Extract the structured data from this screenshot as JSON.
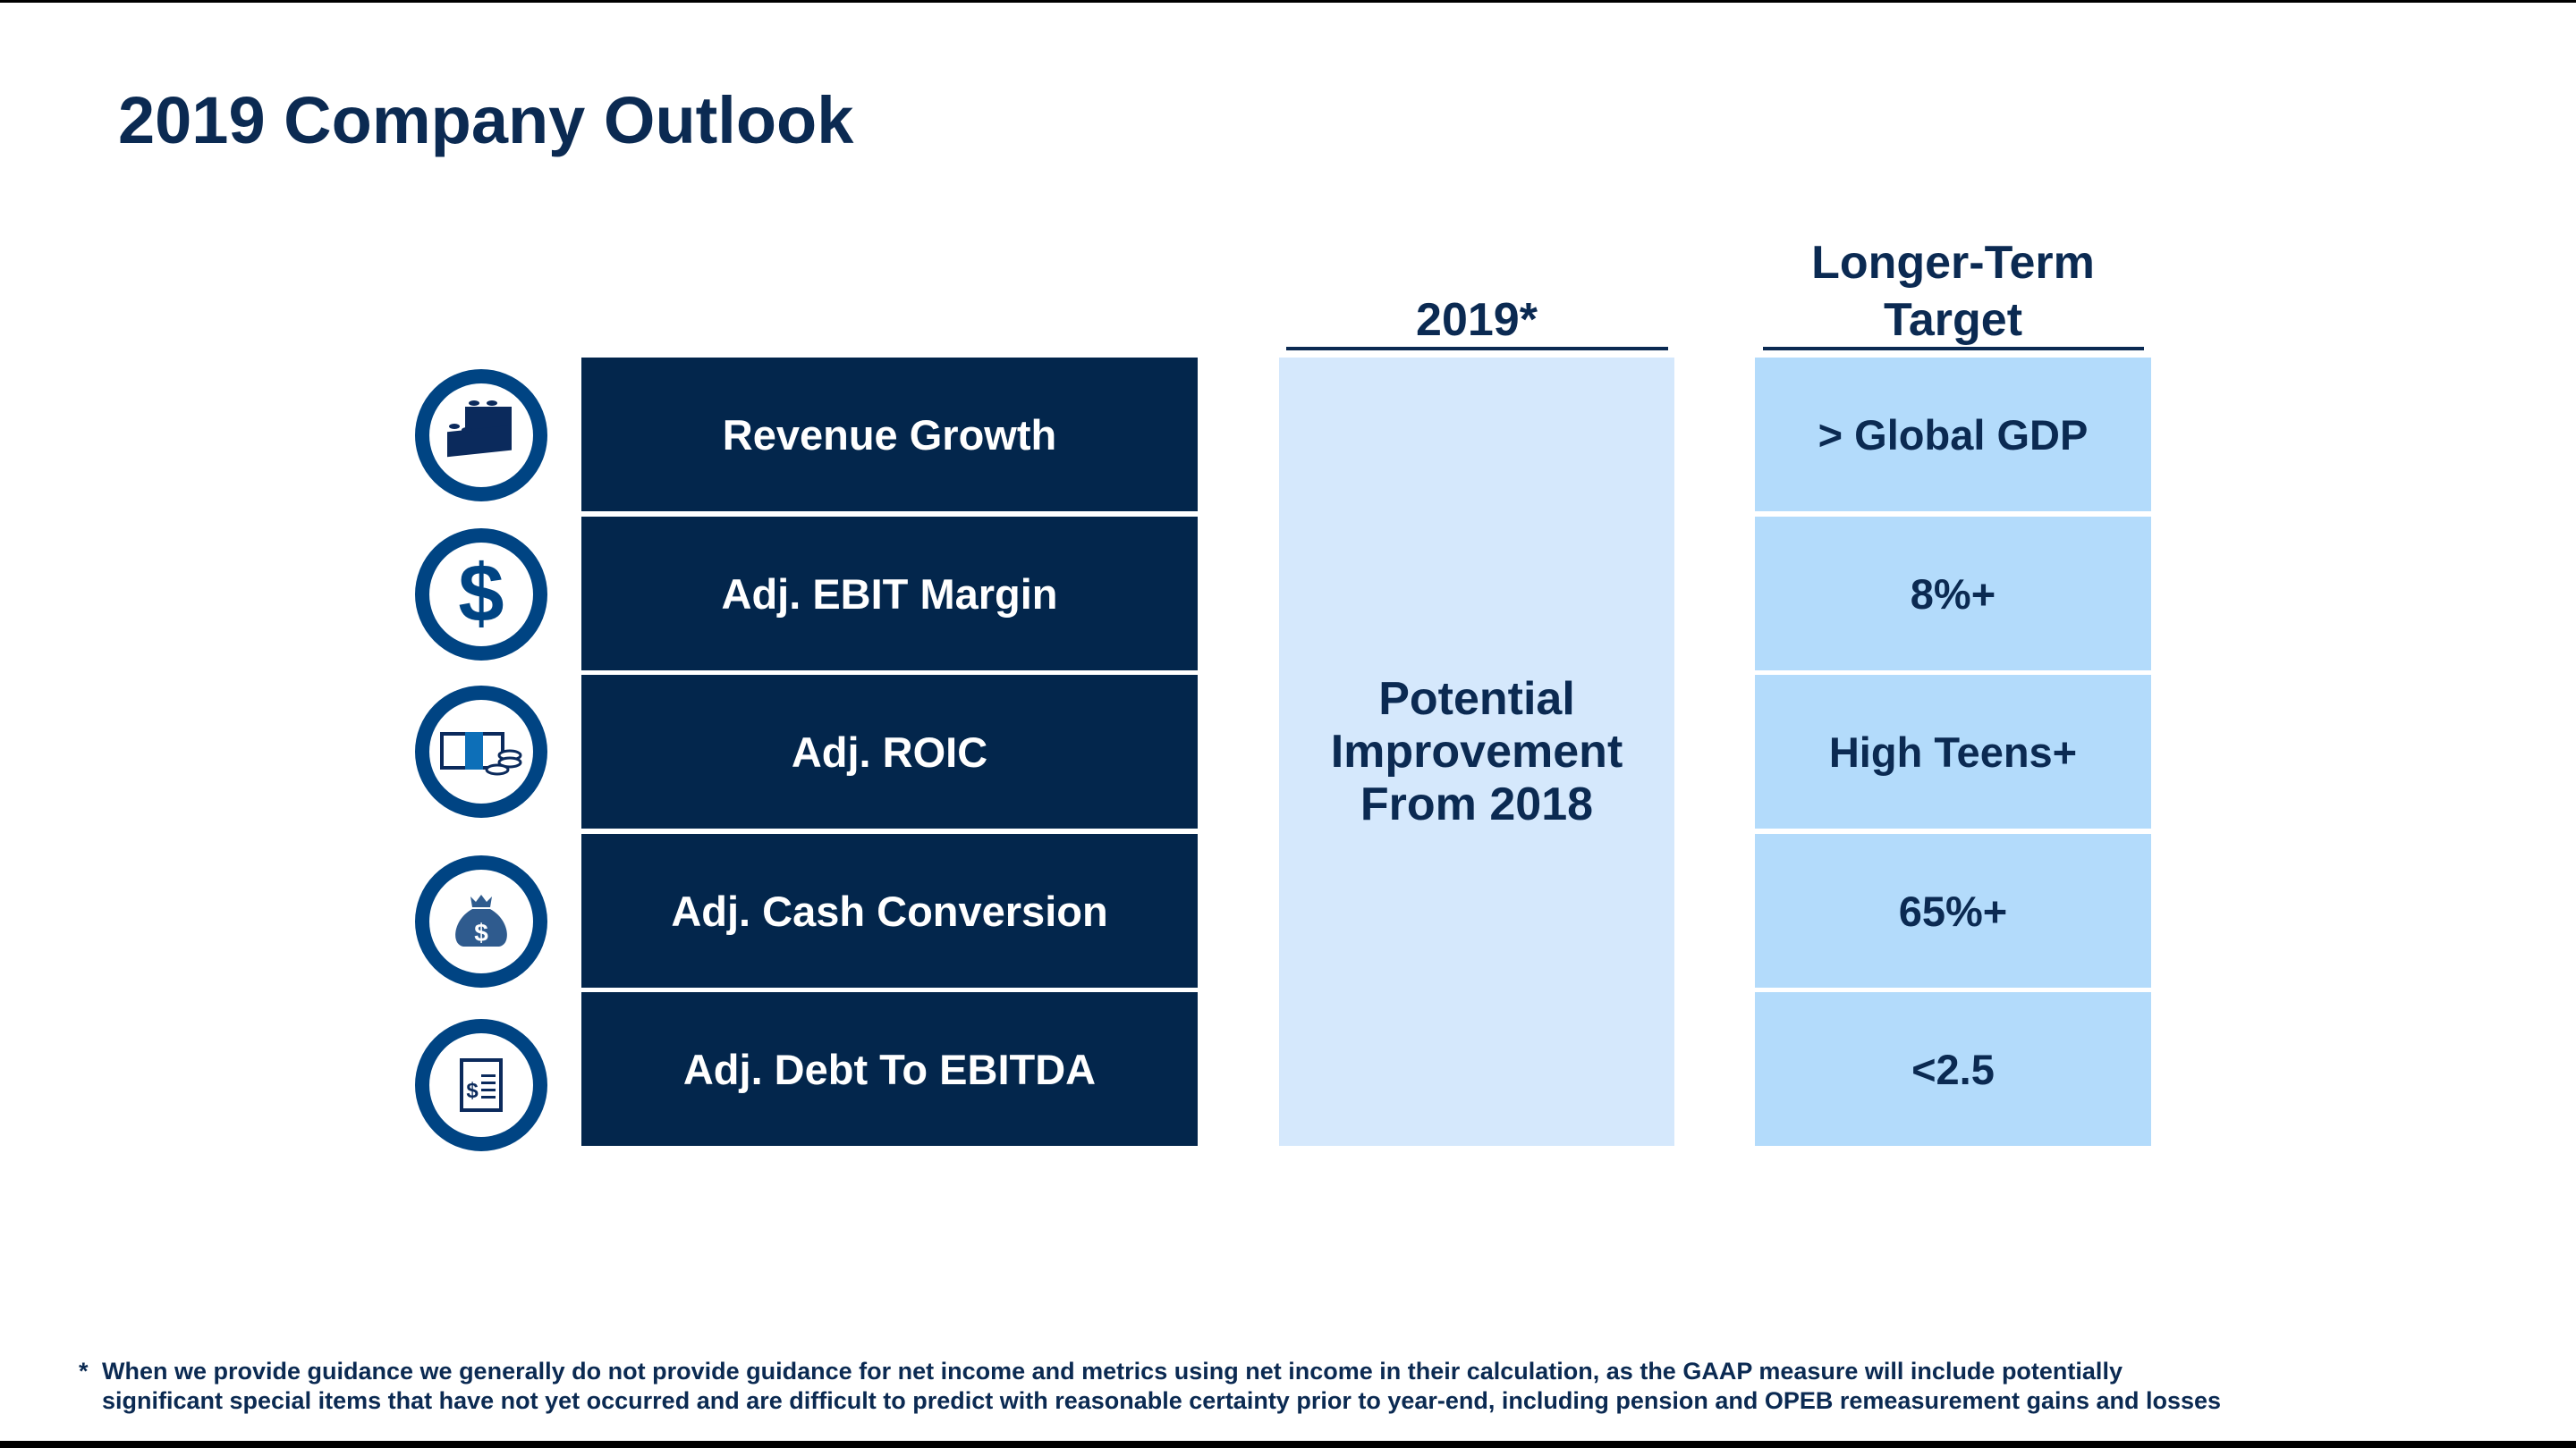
{
  "title": "2019 Company Outlook",
  "headers": {
    "col_2019": "2019*",
    "col_target_line1": "Longer-Term",
    "col_target_line2": "Target"
  },
  "metrics": [
    {
      "label": "Revenue Growth",
      "icon": "building-blocks-icon",
      "target": "> Global GDP"
    },
    {
      "label": "Adj. EBIT Margin",
      "icon": "dollar-sign-icon",
      "target": "8%+"
    },
    {
      "label": "Adj. ROIC",
      "icon": "cash-and-coins-icon",
      "target": "High Teens+"
    },
    {
      "label": "Adj. Cash Conversion",
      "icon": "money-bag-icon",
      "target": "65%+"
    },
    {
      "label": "Adj. Debt To EBITDA",
      "icon": "invoice-document-icon",
      "target": "<2.5"
    }
  ],
  "outlook_2019": {
    "line1": "Potential",
    "line2": "Improvement",
    "line3": "From 2018"
  },
  "footnote": {
    "marker": "*",
    "line1": "When we provide guidance we generally do not provide guidance for net income and metrics using net income in their calculation, as the GAAP measure will include potentially",
    "line2": "significant special items that have not yet occurred and are difficult to predict with reasonable certainty prior to year-end, including pension and OPEB remeasurement gains and losses"
  },
  "colors": {
    "navy": "#03264c",
    "icon_ring": "#004483",
    "light_blue": "#d5e8fc",
    "target_blue": "#b3dbfb"
  }
}
